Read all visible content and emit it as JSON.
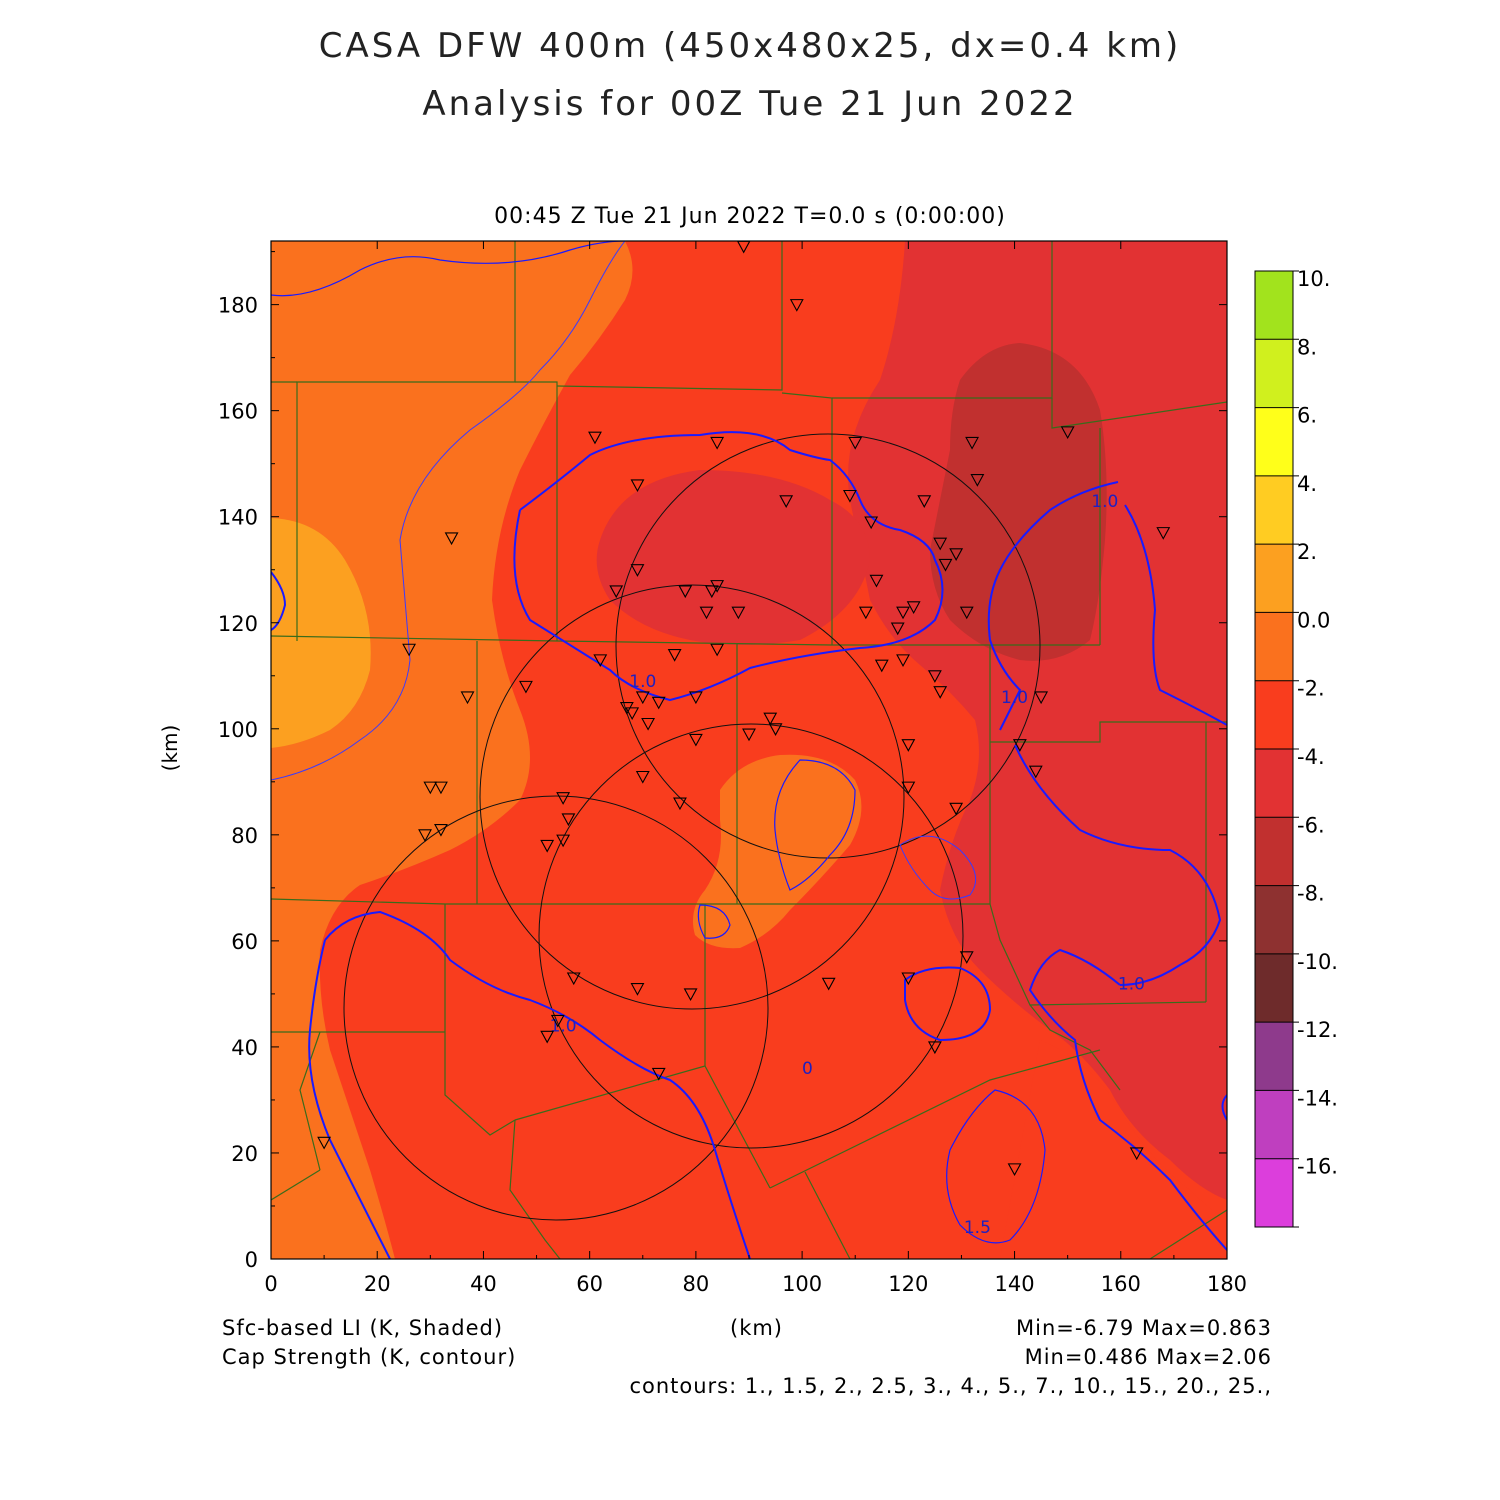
{
  "title_line1": "CASA DFW 400m (450x480x25, dx=0.4 km)",
  "title_line2": "Analysis for 00Z Tue 21 Jun 2022",
  "subtitle": "00:45 Z Tue 21 Jun 2022   T=0.0 s (0:00:00)",
  "axes": {
    "x_label": "(km)",
    "y_label": "(km)",
    "x_ticks": [
      "0",
      "20",
      "40",
      "60",
      "80",
      "100",
      "120",
      "140",
      "160",
      "180"
    ],
    "y_ticks": [
      "0",
      "20",
      "40",
      "60",
      "80",
      "100",
      "120",
      "140",
      "160",
      "180"
    ],
    "x_range": [
      0,
      180
    ],
    "y_range": [
      0,
      192
    ]
  },
  "colorbar": {
    "labels": [
      "10.",
      "8.",
      "6.",
      "4.",
      "2.",
      "0.0",
      "-2.",
      "-4.",
      "-6.",
      "-8.",
      "-10.",
      "-12.",
      "-14.",
      "-16."
    ],
    "colors": [
      "#a2e31d",
      "#d0f01e",
      "#ffff1a",
      "#ffcc22",
      "#fca020",
      "#fa711e",
      "#f93d1e",
      "#e23233",
      "#c1302f",
      "#8e3130",
      "#6e2b2b",
      "#8e3a8c",
      "#bf3fbf",
      "#dc3edc"
    ]
  },
  "contour_labels": [
    {
      "text": "1.0",
      "x": 70,
      "y": 109
    },
    {
      "text": "1.0",
      "x": 55,
      "y": 44
    },
    {
      "text": "1.0",
      "x": 157,
      "y": 143
    },
    {
      "text": "1.0",
      "x": 140,
      "y": 106
    },
    {
      "text": "1.0",
      "x": 162,
      "y": 52
    },
    {
      "text": "1.5",
      "x": 133,
      "y": 6
    },
    {
      "text": "0",
      "x": 101,
      "y": 36
    }
  ],
  "stations": [
    [
      89,
      191
    ],
    [
      99,
      180
    ],
    [
      61,
      155
    ],
    [
      84,
      154
    ],
    [
      110,
      154
    ],
    [
      132,
      154
    ],
    [
      150,
      156
    ],
    [
      69,
      146
    ],
    [
      97,
      143
    ],
    [
      109,
      144
    ],
    [
      123,
      143
    ],
    [
      133,
      147
    ],
    [
      34,
      136
    ],
    [
      113,
      139
    ],
    [
      126,
      135
    ],
    [
      129,
      133
    ],
    [
      127,
      131
    ],
    [
      168,
      137
    ],
    [
      69,
      130
    ],
    [
      65,
      126
    ],
    [
      78,
      126
    ],
    [
      83,
      126
    ],
    [
      84,
      127
    ],
    [
      114,
      128
    ],
    [
      112,
      122
    ],
    [
      119,
      122
    ],
    [
      121,
      123
    ],
    [
      118,
      119
    ],
    [
      82,
      122
    ],
    [
      88,
      122
    ],
    [
      131,
      122
    ],
    [
      26,
      115
    ],
    [
      62,
      113
    ],
    [
      76,
      114
    ],
    [
      84,
      115
    ],
    [
      115,
      112
    ],
    [
      119,
      113
    ],
    [
      125,
      110
    ],
    [
      126,
      107
    ],
    [
      37,
      106
    ],
    [
      48,
      108
    ],
    [
      67,
      104
    ],
    [
      70,
      106
    ],
    [
      73,
      105
    ],
    [
      68,
      103
    ],
    [
      71,
      101
    ],
    [
      80,
      106
    ],
    [
      145,
      106
    ],
    [
      94,
      102
    ],
    [
      95,
      100
    ],
    [
      90,
      99
    ],
    [
      80,
      98
    ],
    [
      120,
      97
    ],
    [
      141,
      97
    ],
    [
      144,
      92
    ],
    [
      70,
      91
    ],
    [
      120,
      89
    ],
    [
      30,
      89
    ],
    [
      32,
      89
    ],
    [
      77,
      86
    ],
    [
      55,
      87
    ],
    [
      56,
      83
    ],
    [
      29,
      80
    ],
    [
      32,
      81
    ],
    [
      129,
      85
    ],
    [
      52,
      78
    ],
    [
      55,
      79
    ],
    [
      131,
      57
    ],
    [
      57,
      53
    ],
    [
      69,
      51
    ],
    [
      79,
      50
    ],
    [
      105,
      52
    ],
    [
      120,
      53
    ],
    [
      52,
      42
    ],
    [
      54,
      45
    ],
    [
      125,
      40
    ],
    [
      73,
      35
    ],
    [
      10,
      22
    ],
    [
      140,
      17
    ],
    [
      163,
      20
    ]
  ],
  "footer": {
    "li_label": "Sfc-based LI (K, Shaded)",
    "cap_label": "Cap Strength (K, contour)",
    "x_unit": "(km)",
    "li_minmax": "Min=-6.79 Max=0.863",
    "cap_minmax": "Min=0.486 Max=2.06",
    "contours": "contours: 1., 1.5, 2., 2.5, 3., 4., 5., 7., 10., 15., 20., 25.,"
  }
}
